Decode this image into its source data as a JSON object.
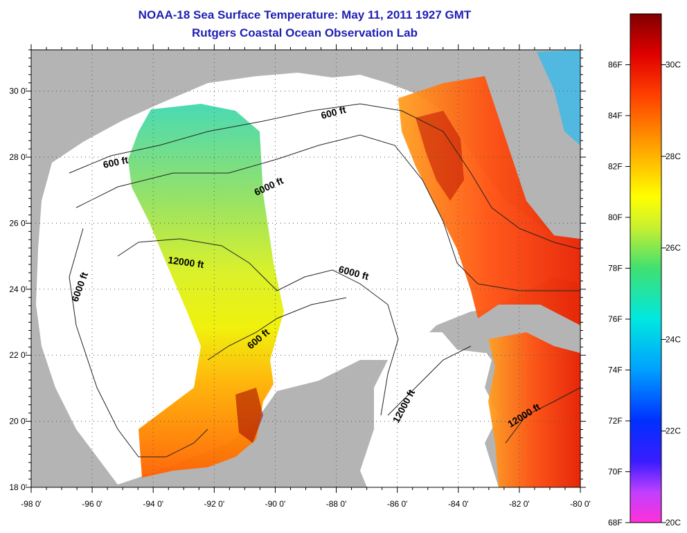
{
  "title": "NOAA-18 Sea Surface Temperature:  May 11, 2011 1927 GMT",
  "subtitle": "Rutgers Coastal Ocean Observation Lab",
  "lon_ticks": [
    "-98 0'",
    "-96 0'",
    "-94 0'",
    "-92 0'",
    "-90 0'",
    "-88 0'",
    "-86 0'",
    "-84 0'",
    "-82 0'",
    "-80 0'"
  ],
  "lat_ticks": [
    "30 0'",
    "28 0'",
    "26 0'",
    "24 0'",
    "22 0'",
    "20 0'",
    "18 0'"
  ],
  "contour_labels": [
    "600 ft",
    "600 ft",
    "6000 ft",
    "6000 ft",
    "12000 ft",
    "6000 ft",
    "600 ft",
    "12000 ft",
    "12000 ft"
  ],
  "colorbar": {
    "fahrenheit": [
      "86F",
      "84F",
      "82F",
      "80F",
      "78F",
      "76F",
      "74F",
      "72F",
      "70F",
      "68F"
    ],
    "celsius": [
      "30C",
      "28C",
      "26C",
      "24C",
      "22C",
      "20C"
    ]
  },
  "colors": {
    "land": "#b4b4b4",
    "water_nodata": "#ffffff",
    "title": "#1e1eb4"
  }
}
